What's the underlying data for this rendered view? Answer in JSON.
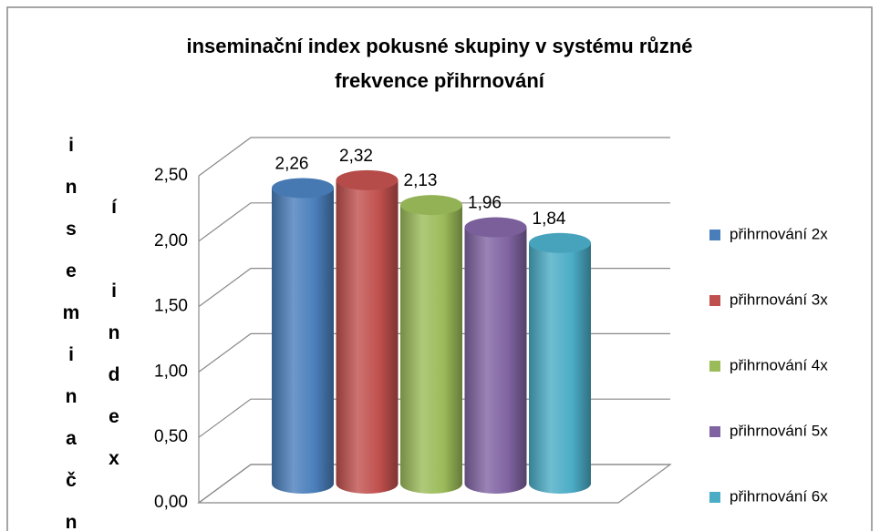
{
  "chart_data": {
    "type": "cylinder",
    "title": [
      "inseminační index pokusné skupiny v systému různé",
      "frekvence přihrnování"
    ],
    "y_label": "inseminační index",
    "ylim": [
      0,
      2.5
    ],
    "yticks": [
      {
        "value": 0,
        "label": "0,00"
      },
      {
        "value": 0.5,
        "label": "0,50"
      },
      {
        "value": 1,
        "label": "1,00"
      },
      {
        "value": 1.5,
        "label": "1,50"
      },
      {
        "value": 2,
        "label": "2,00"
      },
      {
        "value": 2.5,
        "label": "2,50"
      }
    ],
    "grid": true,
    "legend": "right",
    "series": [
      {
        "name": "přihrnování 2x",
        "color": "#4a7ebb",
        "values": [
          2.26
        ],
        "value_labels": [
          "2,26"
        ]
      },
      {
        "name": "přihrnování 3x",
        "color": "#c0504d",
        "values": [
          2.32
        ],
        "value_labels": [
          "2,32"
        ]
      },
      {
        "name": "přihrnování 4x",
        "color": "#9bbb59",
        "values": [
          2.13
        ],
        "value_labels": [
          "2,13"
        ]
      },
      {
        "name": "přihrnování 5x",
        "color": "#8064a2",
        "values": [
          1.96
        ],
        "value_labels": [
          "1,96"
        ]
      },
      {
        "name": "přihrnování 6x",
        "color": "#4bacc6",
        "values": [
          1.84
        ],
        "value_labels": [
          "1,84"
        ]
      }
    ]
  }
}
